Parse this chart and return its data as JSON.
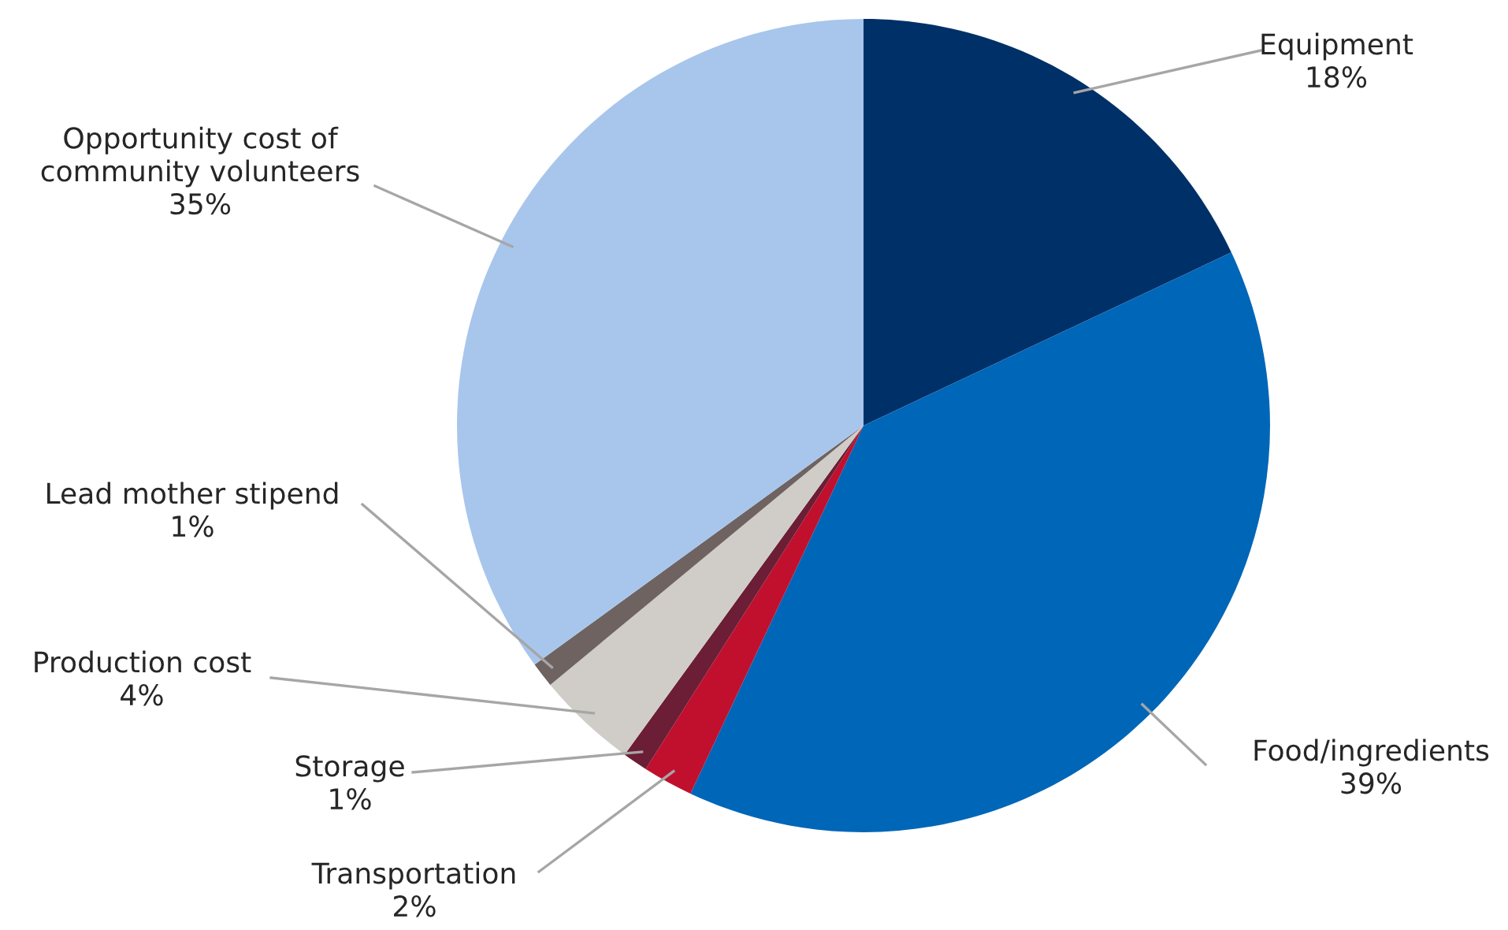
{
  "chart_data": {
    "type": "pie",
    "categories": [
      "Equipment",
      "Food/ingredients",
      "Transportation",
      "Storage",
      "Production cost",
      "Lead mother stipend",
      "Opportunity cost of\ncommunity volunteers"
    ],
    "values": [
      18,
      39,
      2,
      1,
      4,
      1,
      35
    ],
    "value_labels": [
      "18%",
      "39%",
      "2%",
      "1%",
      "4%",
      "1%",
      "35%"
    ],
    "colors": [
      "#003068",
      "#0066b8",
      "#c0102e",
      "#6b1e35",
      "#d0cdc8",
      "#6e6360",
      "#a8c6ec"
    ]
  }
}
